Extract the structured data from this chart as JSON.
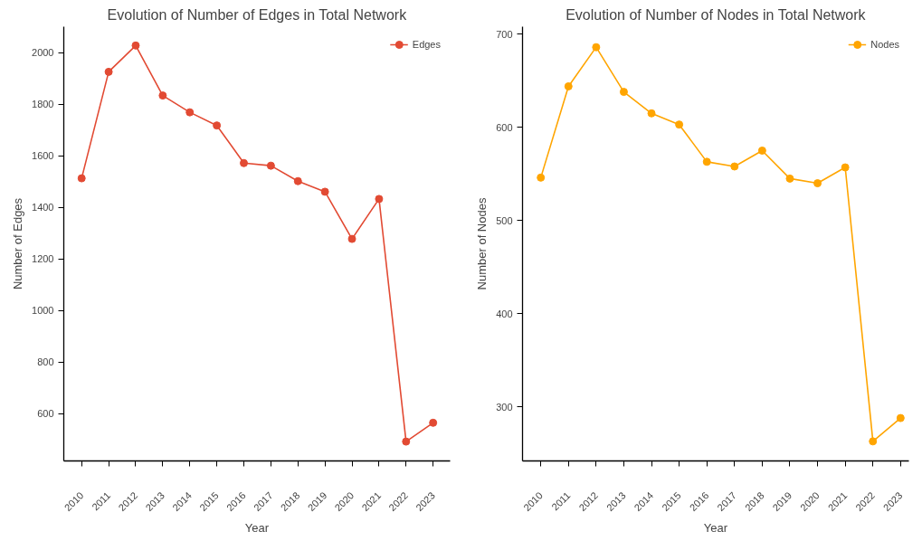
{
  "chart_data": [
    {
      "type": "line",
      "title": "Evolution of Number of Edges in Total Network",
      "xlabel": "Year",
      "ylabel": "Number of Edges",
      "x": [
        2010,
        2011,
        2012,
        2013,
        2014,
        2015,
        2016,
        2017,
        2018,
        2019,
        2020,
        2021,
        2022,
        2023
      ],
      "series": [
        {
          "name": "Edges",
          "color": "#e24a33",
          "values": [
            1512,
            1925,
            2027,
            1833,
            1768,
            1717,
            1571,
            1561,
            1501,
            1460,
            1277,
            1432,
            491,
            564
          ]
        }
      ],
      "xlim": [
        2009.34,
        2023.63
      ],
      "xticks": [
        2010,
        2011,
        2012,
        2013,
        2014,
        2015,
        2016,
        2017,
        2018,
        2019,
        2020,
        2021,
        2022,
        2023
      ],
      "ylim": [
        416,
        2100
      ],
      "yticks": [
        600,
        800,
        1000,
        1200,
        1400,
        1600,
        1800,
        2000
      ],
      "grid": false,
      "legend": "top right",
      "marker": "circle",
      "line_style": "solid"
    },
    {
      "type": "line",
      "title": "Evolution of Number of Nodes in Total Network",
      "xlabel": "Year",
      "ylabel": "Number of Nodes",
      "x": [
        2010,
        2011,
        2012,
        2013,
        2014,
        2015,
        2016,
        2017,
        2018,
        2019,
        2020,
        2021,
        2022,
        2023
      ],
      "series": [
        {
          "name": "Nodes",
          "color": "#ffa500",
          "values": [
            546,
            644,
            686,
            638,
            615,
            603,
            563,
            558,
            575,
            545,
            540,
            557,
            263,
            288
          ]
        }
      ],
      "xlim": [
        2009.34,
        2023.3
      ],
      "xticks": [
        2010,
        2011,
        2012,
        2013,
        2014,
        2015,
        2016,
        2017,
        2018,
        2019,
        2020,
        2021,
        2022,
        2023
      ],
      "ylim": [
        242,
        708
      ],
      "yticks": [
        300,
        400,
        500,
        600,
        700
      ],
      "grid": false,
      "legend": "top right",
      "marker": "circle",
      "line_style": "solid"
    }
  ]
}
